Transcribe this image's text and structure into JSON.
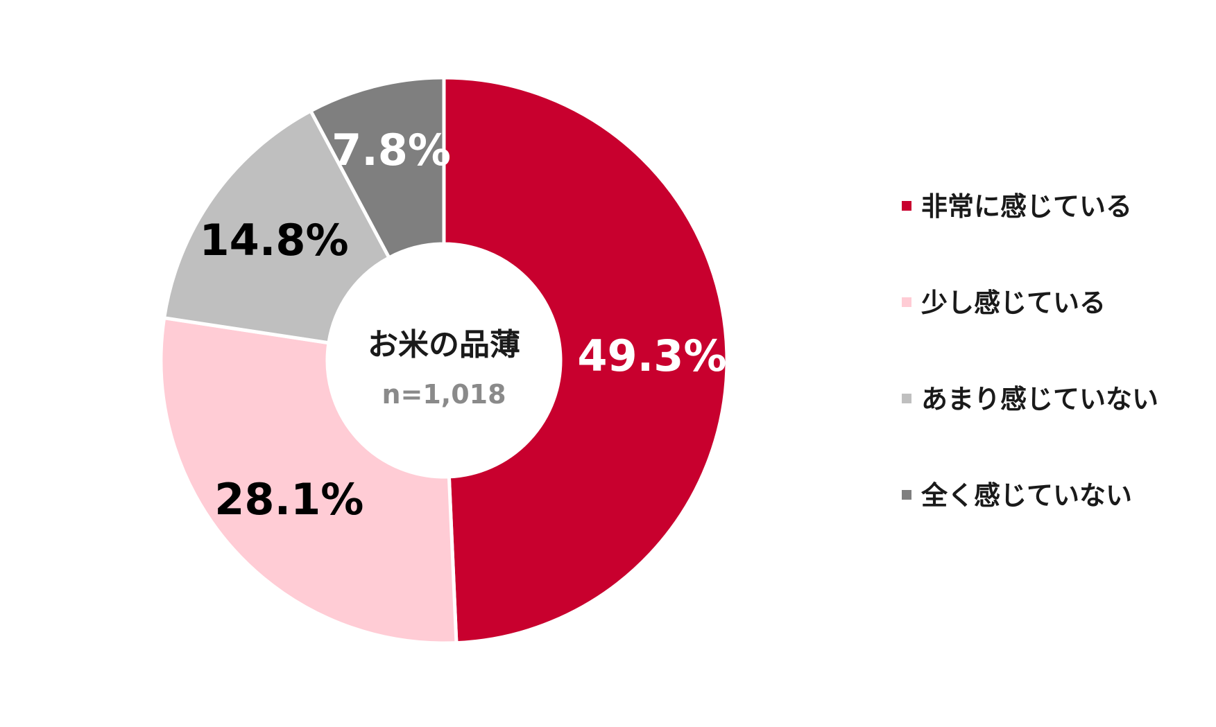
{
  "chart_data": {
    "type": "pie",
    "variant": "donut",
    "center": {
      "title": "お米の品薄",
      "subtitle": "n=1,018"
    },
    "categories": [
      "非常に感じている",
      "少し感じている",
      "あまり感じていない",
      "全く感じていない"
    ],
    "values": [
      49.3,
      28.1,
      14.8,
      7.8
    ],
    "value_labels": [
      "49.3%",
      "28.1%",
      "14.8%",
      "7.8%"
    ],
    "colors": [
      "#c8002e",
      "#ffccd5",
      "#bfbfbf",
      "#7f7f7f"
    ],
    "label_colors": [
      "#ffffff",
      "#000000",
      "#000000",
      "#ffffff"
    ],
    "legend_position": "right",
    "start_angle": "top",
    "direction": "clockwise"
  }
}
